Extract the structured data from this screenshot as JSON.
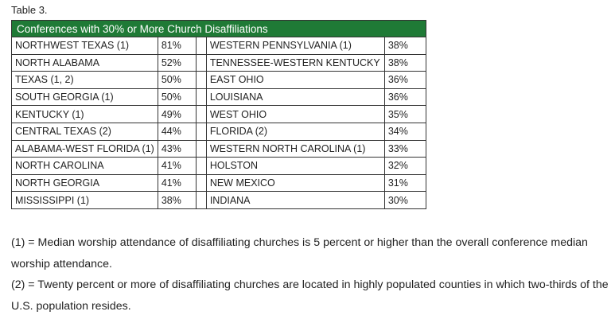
{
  "caption": "Table 3.",
  "table": {
    "title": "Conferences with 30% or More Church Disaffiliations",
    "rows": [
      [
        "NORTHWEST TEXAS (1)",
        "81%",
        "WESTERN PENNSYLVANIA (1)",
        "38%"
      ],
      [
        "NORTH ALABAMA",
        "52%",
        "TENNESSEE-WESTERN KENTUCKY",
        "38%"
      ],
      [
        "TEXAS (1, 2)",
        "50%",
        "EAST OHIO",
        "36%"
      ],
      [
        "SOUTH GEORGIA (1)",
        "50%",
        "LOUISIANA",
        "36%"
      ],
      [
        "KENTUCKY (1)",
        "49%",
        "WEST OHIO",
        "35%"
      ],
      [
        "CENTRAL TEXAS (2)",
        "44%",
        "FLORIDA (2)",
        "34%"
      ],
      [
        "ALABAMA-WEST FLORIDA (1)",
        "43%",
        "WESTERN NORTH CAROLINA (1)",
        "33%"
      ],
      [
        "NORTH CAROLINA",
        "41%",
        "HOLSTON",
        "32%"
      ],
      [
        "NORTH GEORGIA",
        "41%",
        "NEW MEXICO",
        "31%"
      ],
      [
        "MISSISSIPPI (1)",
        "38%",
        "INDIANA",
        "30%"
      ]
    ]
  },
  "notes": [
    "(1) = Median worship attendance of disaffiliating churches is 5 percent or higher than the overall conference median worship attendance.",
    "(2) = Twenty percent or more of disaffiliating churches are located in highly populated counties in which two-thirds of the U.S. population resides."
  ]
}
